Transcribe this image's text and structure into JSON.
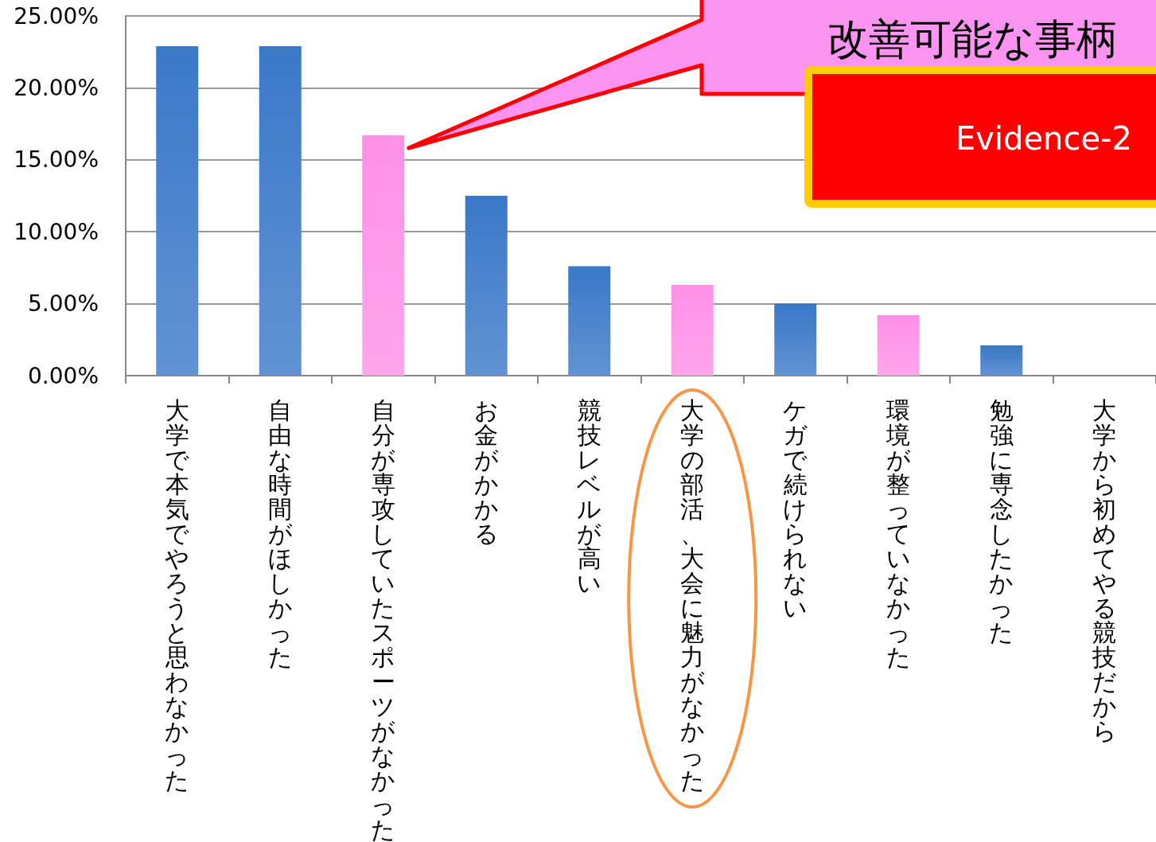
{
  "chart_data": {
    "type": "bar",
    "categories": [
      "大学で本気でやろうと思わなかった",
      "自由な時間がほしかった",
      "自分が専攻していたスポーツがなかった",
      "お金がかかる",
      "競技レベルが高い",
      "大学の部活、大会に魅力がなかった",
      "ケガで続けられない",
      "環境が整っていなかった",
      "勉強に専念したかった",
      "大学から初めてやる競技だから"
    ],
    "values": [
      22.9,
      22.9,
      16.7,
      12.5,
      7.6,
      6.3,
      5.0,
      4.2,
      2.1,
      0
    ],
    "colors": [
      "#3a78c8",
      "#3a78c8",
      "#ff90e8",
      "#3a78c8",
      "#3a78c8",
      "#ff90e8",
      "#3a78c8",
      "#ff90e8",
      "#3a78c8",
      "#3a78c8"
    ],
    "ylim": [
      0,
      25
    ],
    "yticks": [
      {
        "value": 0,
        "label": "0.00%"
      },
      {
        "value": 5,
        "label": "5.00%"
      },
      {
        "value": 10,
        "label": "10.00%"
      },
      {
        "value": 15,
        "label": "15.00%"
      },
      {
        "value": 20,
        "label": "20.00%"
      },
      {
        "value": 25,
        "label": "25.00%"
      }
    ],
    "grid": "y",
    "annotations": [
      "改善可能な事柄",
      "Evidence-2"
    ]
  }
}
